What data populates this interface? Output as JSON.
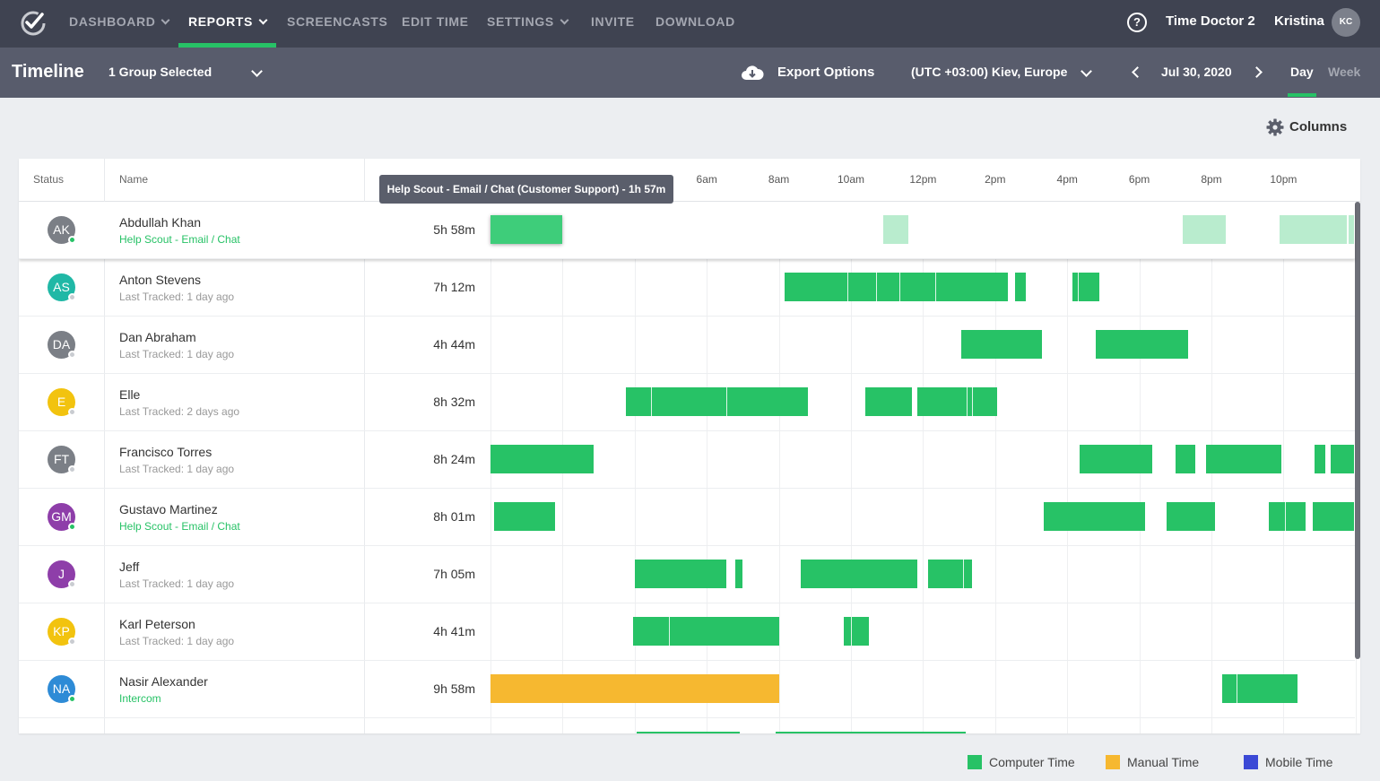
{
  "nav": {
    "items": [
      {
        "label": "DASHBOARD",
        "dropdown": true,
        "active": false
      },
      {
        "label": "REPORTS",
        "dropdown": true,
        "active": true
      },
      {
        "label": "SCREENCASTS",
        "dropdown": false,
        "active": false
      },
      {
        "label": "EDIT TIME",
        "dropdown": false,
        "active": false
      },
      {
        "label": "SETTINGS",
        "dropdown": true,
        "active": false
      },
      {
        "label": "INVITE",
        "dropdown": false,
        "active": false
      },
      {
        "label": "DOWNLOAD",
        "dropdown": false,
        "active": false
      }
    ],
    "help_icon": "question-circle-icon",
    "help_glyph": "?",
    "company": "Time Doctor 2",
    "user_name": "Kristina",
    "user_initials": "KC"
  },
  "subbar": {
    "title": "Timeline",
    "group_select": "1 Group Selected",
    "export_label": "Export Options",
    "timezone": "(UTC +03:00) Kiev, Europe",
    "date": "Jul 30, 2020",
    "tab_day": "Day",
    "tab_week": "Week"
  },
  "columns_button": "Columns",
  "table": {
    "headers": {
      "status": "Status",
      "name": "Name"
    },
    "hour_labels": [
      "6am",
      "8am",
      "10am",
      "12pm",
      "2pm",
      "4pm",
      "6pm",
      "8pm",
      "10pm"
    ],
    "tooltip": "Help Scout - Email / Chat (Customer Support) - 1h 57m",
    "rows": [
      {
        "initials": "AK",
        "name": "Abdullah Khan",
        "sub": "Help Scout - Email / Chat",
        "sub_active": true,
        "total": "5h 58m",
        "avatar_color": "#7b7f86",
        "online": true
      },
      {
        "initials": "AS",
        "name": "Anton Stevens",
        "sub": "Last Tracked: 1 day ago",
        "sub_active": false,
        "total": "7h 12m",
        "avatar_color": "#20b8a6",
        "online": false
      },
      {
        "initials": "DA",
        "name": "Dan Abraham",
        "sub": "Last Tracked: 1 day ago",
        "sub_active": false,
        "total": "4h 44m",
        "avatar_color": "#7b7f86",
        "online": false
      },
      {
        "initials": "E",
        "name": "Elle",
        "sub": "Last Tracked: 2 days ago",
        "sub_active": false,
        "total": "8h 32m",
        "avatar_color": "#f2c30f",
        "online": false
      },
      {
        "initials": "FT",
        "name": "Francisco Torres",
        "sub": "Last Tracked: 1 day ago",
        "sub_active": false,
        "total": "8h 24m",
        "avatar_color": "#7b7f86",
        "online": false
      },
      {
        "initials": "GM",
        "name": "Gustavo Martinez",
        "sub": "Help Scout - Email / Chat",
        "sub_active": true,
        "total": "8h 01m",
        "avatar_color": "#8e3ea9",
        "online": true
      },
      {
        "initials": "J",
        "name": "Jeff",
        "sub": "Last Tracked: 1 day ago",
        "sub_active": false,
        "total": "7h 05m",
        "avatar_color": "#8e3ea9",
        "online": false
      },
      {
        "initials": "KP",
        "name": "Karl Peterson",
        "sub": "Last Tracked: 1 day ago",
        "sub_active": false,
        "total": "4h 41m",
        "avatar_color": "#f2c30f",
        "online": false
      },
      {
        "initials": "NA",
        "name": "Nasir Alexander",
        "sub": "Intercom",
        "sub_active": true,
        "total": "9h 58m",
        "avatar_color": "#2e8bd6",
        "online": true
      }
    ]
  },
  "chart_data": {
    "type": "timeline",
    "x_unit": "hour of day",
    "xlim": [
      0,
      24
    ],
    "series_types": [
      "computer",
      "manual",
      "mobile"
    ],
    "rows": [
      {
        "name": "Abdullah Khan",
        "segments": [
          {
            "start": 0.0,
            "end": 2.0,
            "type": "computer",
            "highlight": true
          },
          {
            "start": 10.9,
            "end": 11.6,
            "type": "computer",
            "faded": true
          },
          {
            "start": 19.2,
            "end": 20.4,
            "type": "computer",
            "faded": true
          },
          {
            "start": 21.9,
            "end": 23.75,
            "type": "computer",
            "faded": true
          },
          {
            "start": 23.8,
            "end": 24.0,
            "type": "computer",
            "faded": true
          }
        ]
      },
      {
        "name": "Anton Stevens",
        "segments": [
          {
            "start": 8.15,
            "end": 14.35,
            "type": "computer",
            "splits": [
              9.9,
              10.7,
              11.35,
              12.35
            ]
          },
          {
            "start": 14.55,
            "end": 14.85,
            "type": "computer"
          },
          {
            "start": 16.15,
            "end": 16.9,
            "type": "computer",
            "splits": [
              16.3
            ]
          }
        ]
      },
      {
        "name": "Dan Abraham",
        "segments": [
          {
            "start": 13.05,
            "end": 15.3,
            "type": "computer"
          },
          {
            "start": 16.8,
            "end": 19.35,
            "type": "computer"
          }
        ]
      },
      {
        "name": "Elle",
        "segments": [
          {
            "start": 3.75,
            "end": 8.8,
            "type": "computer",
            "splits": [
              4.45,
              6.55
            ]
          },
          {
            "start": 10.4,
            "end": 11.7,
            "type": "computer"
          },
          {
            "start": 11.85,
            "end": 14.05,
            "type": "computer",
            "splits": [
              13.2,
              13.35
            ]
          }
        ]
      },
      {
        "name": "Francisco Torres",
        "segments": [
          {
            "start": 0.0,
            "end": 2.85,
            "type": "computer"
          },
          {
            "start": 16.35,
            "end": 18.35,
            "type": "computer"
          },
          {
            "start": 19.0,
            "end": 19.55,
            "type": "computer"
          },
          {
            "start": 19.85,
            "end": 21.95,
            "type": "computer"
          },
          {
            "start": 22.85,
            "end": 23.15,
            "type": "computer"
          },
          {
            "start": 23.3,
            "end": 24.0,
            "type": "computer"
          }
        ]
      },
      {
        "name": "Gustavo Martinez",
        "segments": [
          {
            "start": 0.1,
            "end": 1.8,
            "type": "computer"
          },
          {
            "start": 15.35,
            "end": 18.15,
            "type": "computer"
          },
          {
            "start": 18.75,
            "end": 20.1,
            "type": "computer"
          },
          {
            "start": 21.6,
            "end": 22.6,
            "type": "computer",
            "splits": [
              22.05
            ]
          },
          {
            "start": 22.8,
            "end": 24.0,
            "type": "computer"
          }
        ]
      },
      {
        "name": "Jeff",
        "segments": [
          {
            "start": 4.0,
            "end": 6.55,
            "type": "computer"
          },
          {
            "start": 6.8,
            "end": 7.0,
            "type": "computer"
          },
          {
            "start": 8.6,
            "end": 11.85,
            "type": "computer"
          },
          {
            "start": 12.15,
            "end": 13.35,
            "type": "computer",
            "splits": [
              13.1
            ]
          }
        ]
      },
      {
        "name": "Karl Peterson",
        "segments": [
          {
            "start": 3.95,
            "end": 8.0,
            "type": "computer",
            "splits": [
              4.95
            ]
          },
          {
            "start": 9.8,
            "end": 10.5,
            "type": "computer",
            "splits": [
              10.0
            ]
          }
        ]
      },
      {
        "name": "Nasir Alexander",
        "segments": [
          {
            "start": 0.0,
            "end": 8.0,
            "type": "manual"
          },
          {
            "start": 20.3,
            "end": 22.4,
            "type": "computer",
            "splits": [
              20.7
            ]
          }
        ]
      }
    ]
  },
  "legend": [
    {
      "label": "Computer Time",
      "color": "#27c266"
    },
    {
      "label": "Manual Time",
      "color": "#f6b830"
    },
    {
      "label": "Mobile Time",
      "color": "#3b49d6"
    }
  ]
}
